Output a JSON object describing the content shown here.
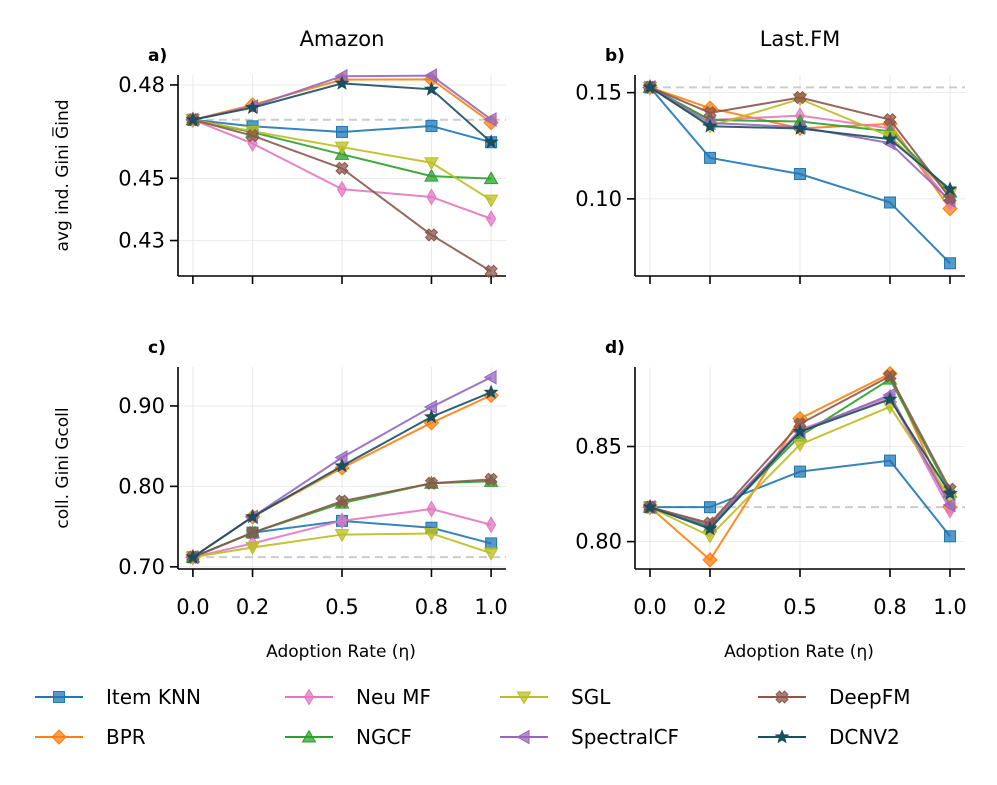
{
  "figure": {
    "xlabel": "Adoption Rate (η)",
    "legend": [
      {
        "label": "Item KNN",
        "color": "#1f77b4",
        "marker": "square"
      },
      {
        "label": "BPR",
        "color": "#ff7f0e",
        "marker": "diamond"
      },
      {
        "label": "Neu MF",
        "color": "#e377c2",
        "marker": "thin_diamond"
      },
      {
        "label": "NGCF",
        "color": "#2ca02c",
        "marker": "triangle_up"
      },
      {
        "label": "SGL",
        "color": "#bcbd22",
        "marker": "triangle_down"
      },
      {
        "label": "SpectralCF",
        "color": "#9467bd",
        "marker": "triangle_left"
      },
      {
        "label": "DeepFM",
        "color": "#8c564b",
        "marker": "x_filled"
      },
      {
        "label": "DCNV2",
        "color": "#1b4f5e",
        "marker": "star"
      }
    ]
  },
  "chart_data": [
    {
      "id": "a",
      "type": "line",
      "panel_label": "a)",
      "title": "Amazon",
      "ylabel": "avg ind. Gini G̅ind",
      "ylim": [
        0.4186,
        0.4832
      ],
      "yticks": [
        0.43,
        0.45,
        0.48
      ],
      "ytick_labels": [
        "0.43",
        "0.45",
        "0.48"
      ],
      "x": [
        0.0,
        0.2,
        0.5,
        0.8,
        1.0
      ],
      "xticks": [
        "0.0",
        "0.2",
        "0.5",
        "0.8",
        "1.0"
      ],
      "show_xtick_labels": false,
      "baseline": 0.4688,
      "series": [
        {
          "name": "Item KNN",
          "values": [
            0.4688,
            0.4667,
            0.4649,
            0.4668,
            0.4616
          ]
        },
        {
          "name": "BPR",
          "values": [
            0.4688,
            0.4736,
            0.4817,
            0.4818,
            0.4679
          ]
        },
        {
          "name": "Neu MF",
          "values": [
            0.4688,
            0.4612,
            0.4465,
            0.444,
            0.437
          ]
        },
        {
          "name": "NGCF",
          "values": [
            0.4688,
            0.4648,
            0.4577,
            0.4507,
            0.4499
          ]
        },
        {
          "name": "SGL",
          "values": [
            0.4688,
            0.4651,
            0.46,
            0.455,
            0.443
          ]
        },
        {
          "name": "SpectralCF",
          "values": [
            0.4688,
            0.4731,
            0.4828,
            0.483,
            0.4689
          ]
        },
        {
          "name": "DeepFM",
          "values": [
            0.4688,
            0.4637,
            0.4532,
            0.4318,
            0.4201
          ]
        },
        {
          "name": "DCNV2",
          "values": [
            0.4688,
            0.4727,
            0.4805,
            0.4786,
            0.4616
          ]
        }
      ]
    },
    {
      "id": "b",
      "type": "line",
      "panel_label": "b)",
      "title": "Last.FM",
      "ylabel": "",
      "ylim": [
        0.0637,
        0.1583
      ],
      "yticks": [
        0.1,
        0.15
      ],
      "ytick_labels": [
        "0.10",
        "0.15"
      ],
      "x": [
        0.0,
        0.2,
        0.5,
        0.8,
        1.0
      ],
      "xticks": [
        "0.0",
        "0.2",
        "0.5",
        "0.8",
        "1.0"
      ],
      "show_xtick_labels": false,
      "baseline": 0.1525,
      "series": [
        {
          "name": "Item KNN",
          "values": [
            0.1525,
            0.1193,
            0.1117,
            0.0983,
            0.0697
          ]
        },
        {
          "name": "BPR",
          "values": [
            0.1525,
            0.1427,
            0.1332,
            0.1353,
            0.0954
          ]
        },
        {
          "name": "Neu MF",
          "values": [
            0.1525,
            0.1371,
            0.1392,
            0.1332,
            0.0983
          ]
        },
        {
          "name": "NGCF",
          "values": [
            0.1525,
            0.1371,
            0.1364,
            0.1318,
            0.1032
          ]
        },
        {
          "name": "SGL",
          "values": [
            0.1525,
            0.1342,
            0.147,
            0.1294,
            0.1025
          ]
        },
        {
          "name": "SpectralCF",
          "values": [
            0.1525,
            0.1357,
            0.1338,
            0.1262,
            0.0992
          ]
        },
        {
          "name": "DeepFM",
          "values": [
            0.1525,
            0.1405,
            0.1477,
            0.1373,
            0.1004
          ]
        },
        {
          "name": "DCNV2",
          "values": [
            0.1525,
            0.1342,
            0.1331,
            0.1281,
            0.1046
          ]
        }
      ]
    },
    {
      "id": "c",
      "type": "line",
      "panel_label": "c)",
      "title": "",
      "ylabel": "coll. Gini Gcoll",
      "ylim": [
        0.6973,
        0.9484
      ],
      "yticks": [
        0.7,
        0.8,
        0.9
      ],
      "ytick_labels": [
        "0.70",
        "0.80",
        "0.90"
      ],
      "x": [
        0.0,
        0.2,
        0.5,
        0.8,
        1.0
      ],
      "xticks": [
        "0.0",
        "0.2",
        "0.5",
        "0.8",
        "1.0"
      ],
      "show_xtick_labels": true,
      "baseline": 0.712,
      "series": [
        {
          "name": "Item KNN",
          "values": [
            0.712,
            0.7425,
            0.7571,
            0.7486,
            0.7291
          ]
        },
        {
          "name": "BPR",
          "values": [
            0.712,
            0.7621,
            0.8229,
            0.879,
            0.9131
          ]
        },
        {
          "name": "Neu MF",
          "values": [
            0.712,
            0.7291,
            0.7572,
            0.7718,
            0.7523
          ]
        },
        {
          "name": "NGCF",
          "values": [
            0.712,
            0.7425,
            0.7792,
            0.8039,
            0.8063
          ]
        },
        {
          "name": "SGL",
          "values": [
            0.712,
            0.724,
            0.7401,
            0.7415,
            0.7169
          ]
        },
        {
          "name": "SpectralCF",
          "values": [
            0.712,
            0.7621,
            0.8359,
            0.8986,
            0.9356
          ]
        },
        {
          "name": "DeepFM",
          "values": [
            0.712,
            0.7425,
            0.7816,
            0.8039,
            0.8087
          ]
        },
        {
          "name": "DCNV2",
          "values": [
            0.712,
            0.7621,
            0.8253,
            0.8864,
            0.9169
          ]
        }
      ]
    },
    {
      "id": "d",
      "type": "line",
      "panel_label": "d)",
      "title": "",
      "ylabel": "",
      "ylim": [
        0.7856,
        0.8918
      ],
      "yticks": [
        0.8,
        0.85
      ],
      "ytick_labels": [
        "0.80",
        "0.85"
      ],
      "x": [
        0.0,
        0.2,
        0.5,
        0.8,
        1.0
      ],
      "xticks": [
        "0.0",
        "0.2",
        "0.5",
        "0.8",
        "1.0"
      ],
      "show_xtick_labels": true,
      "baseline": 0.8181,
      "series": [
        {
          "name": "Item KNN",
          "values": [
            0.8181,
            0.8181,
            0.8368,
            0.8426,
            0.8028
          ]
        },
        {
          "name": "BPR",
          "values": [
            0.8181,
            0.7904,
            0.8647,
            0.8883,
            0.8181
          ]
        },
        {
          "name": "Neu MF",
          "values": [
            0.8181,
            0.8078,
            0.8588,
            0.876,
            0.8165
          ]
        },
        {
          "name": "NGCF",
          "values": [
            0.8181,
            0.8078,
            0.8555,
            0.8854,
            0.826
          ]
        },
        {
          "name": "SGL",
          "values": [
            0.8181,
            0.8029,
            0.851,
            0.8709,
            0.823
          ]
        },
        {
          "name": "SpectralCF",
          "values": [
            0.8181,
            0.8089,
            0.8579,
            0.8771,
            0.8192
          ]
        },
        {
          "name": "DeepFM",
          "values": [
            0.8181,
            0.8097,
            0.8619,
            0.887,
            0.8275
          ]
        },
        {
          "name": "DCNV2",
          "values": [
            0.8181,
            0.8067,
            0.8578,
            0.8748,
            0.8253
          ]
        }
      ]
    }
  ]
}
